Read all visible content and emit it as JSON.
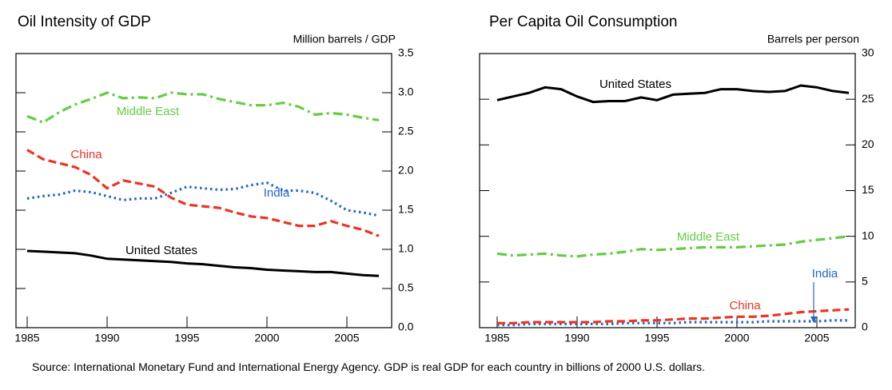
{
  "chart_data": [
    {
      "type": "line",
      "title": "Oil Intensity of GDP",
      "y_label": "Million barrels / GDP",
      "x": [
        1985,
        1986,
        1987,
        1988,
        1989,
        1990,
        1991,
        1992,
        1993,
        1994,
        1995,
        1996,
        1997,
        1998,
        1999,
        2000,
        2001,
        2002,
        2003,
        2004,
        2005,
        2006,
        2007
      ],
      "xlim": [
        1984.3,
        2007.8
      ],
      "xticks": [
        1985,
        1990,
        1995,
        2000,
        2005
      ],
      "ylim": [
        0,
        3.5
      ],
      "yticks": [
        {
          "value": 0,
          "label": "0.0"
        },
        0.5,
        {
          "value": 1,
          "label": "1.0"
        },
        1.5,
        {
          "value": 2,
          "label": "2.0"
        },
        2.5,
        {
          "value": 3,
          "label": "3.0"
        },
        3.5
      ],
      "series": [
        {
          "name": "Middle East",
          "color": "#66cc44",
          "dash": "dashdot",
          "values": [
            2.7,
            2.62,
            2.75,
            2.85,
            2.92,
            3.0,
            2.93,
            2.94,
            2.93,
            3.0,
            2.98,
            2.98,
            2.92,
            2.88,
            2.84,
            2.84,
            2.87,
            2.82,
            2.72,
            2.74,
            2.72,
            2.68,
            2.65
          ]
        },
        {
          "name": "China",
          "color": "#ee3322",
          "dash": "dashed",
          "values": [
            2.27,
            2.15,
            2.1,
            2.05,
            1.95,
            1.78,
            1.88,
            1.84,
            1.8,
            1.66,
            1.57,
            1.55,
            1.53,
            1.47,
            1.42,
            1.4,
            1.35,
            1.3,
            1.3,
            1.36,
            1.3,
            1.25,
            1.17
          ]
        },
        {
          "name": "India",
          "color": "#2266cc",
          "dash": "dotted",
          "values": [
            1.65,
            1.68,
            1.7,
            1.75,
            1.73,
            1.68,
            1.63,
            1.65,
            1.65,
            1.72,
            1.8,
            1.78,
            1.76,
            1.77,
            1.82,
            1.85,
            1.75,
            1.75,
            1.72,
            1.62,
            1.5,
            1.47,
            1.43
          ]
        },
        {
          "name": "United States",
          "color": "#000000",
          "dash": "solid",
          "values": [
            0.98,
            0.97,
            0.96,
            0.95,
            0.92,
            0.88,
            0.87,
            0.86,
            0.85,
            0.84,
            0.82,
            0.81,
            0.79,
            0.77,
            0.76,
            0.74,
            0.73,
            0.72,
            0.71,
            0.71,
            0.69,
            0.67,
            0.66
          ]
        }
      ]
    },
    {
      "type": "line",
      "title": "Per Capita Oil Consumption",
      "y_label": "Barrels per person",
      "x": [
        1985,
        1986,
        1987,
        1988,
        1989,
        1990,
        1991,
        1992,
        1993,
        1994,
        1995,
        1996,
        1997,
        1998,
        1999,
        2000,
        2001,
        2002,
        2003,
        2004,
        2005,
        2006,
        2007
      ],
      "xlim": [
        1983.9,
        2007.4
      ],
      "xticks": [
        1985,
        1990,
        1995,
        2000,
        2005
      ],
      "ylim": [
        0,
        30
      ],
      "yticks": [
        0,
        5,
        10,
        15,
        20,
        25,
        30
      ],
      "series": [
        {
          "name": "United States",
          "color": "#000000",
          "dash": "solid",
          "values": [
            24.9,
            25.3,
            25.7,
            26.3,
            26.1,
            25.3,
            24.7,
            24.8,
            24.8,
            25.2,
            24.9,
            25.5,
            25.6,
            25.7,
            26.1,
            26.1,
            25.9,
            25.8,
            25.9,
            26.5,
            26.3,
            25.9,
            25.7
          ]
        },
        {
          "name": "Middle East",
          "color": "#66cc44",
          "dash": "dashdot",
          "values": [
            8.1,
            7.9,
            8.0,
            8.1,
            7.9,
            7.8,
            8.0,
            8.1,
            8.3,
            8.6,
            8.5,
            8.6,
            8.7,
            8.8,
            8.8,
            8.8,
            8.9,
            9.0,
            9.1,
            9.4,
            9.6,
            9.8,
            10.0
          ]
        },
        {
          "name": "India",
          "color": "#2266cc",
          "dash": "dotted",
          "values": [
            0.3,
            0.3,
            0.4,
            0.4,
            0.4,
            0.4,
            0.4,
            0.4,
            0.5,
            0.5,
            0.5,
            0.5,
            0.6,
            0.6,
            0.6,
            0.6,
            0.6,
            0.7,
            0.7,
            0.7,
            0.7,
            0.8,
            0.8
          ]
        },
        {
          "name": "China",
          "color": "#ee3322",
          "dash": "dashed",
          "values": [
            0.5,
            0.5,
            0.6,
            0.6,
            0.6,
            0.6,
            0.6,
            0.7,
            0.7,
            0.8,
            0.8,
            0.9,
            1.0,
            1.0,
            1.1,
            1.2,
            1.2,
            1.3,
            1.5,
            1.7,
            1.8,
            1.9,
            2.0
          ]
        }
      ]
    }
  ],
  "source": "Source: International Monetary Fund and International Energy Agency.  GDP is real GDP for each country in billions of 2000 U.S. dollars."
}
